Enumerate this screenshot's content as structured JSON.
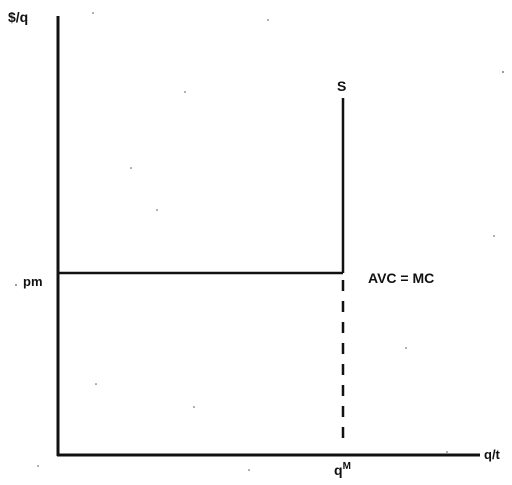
{
  "diagram": {
    "y_axis_label": "$/q",
    "x_axis_label": "q/t",
    "price_label": "pm",
    "quantity_label": "q",
    "quantity_label_superscript": "M",
    "supply_label": "S",
    "cost_label": "AVC = MC"
  }
}
